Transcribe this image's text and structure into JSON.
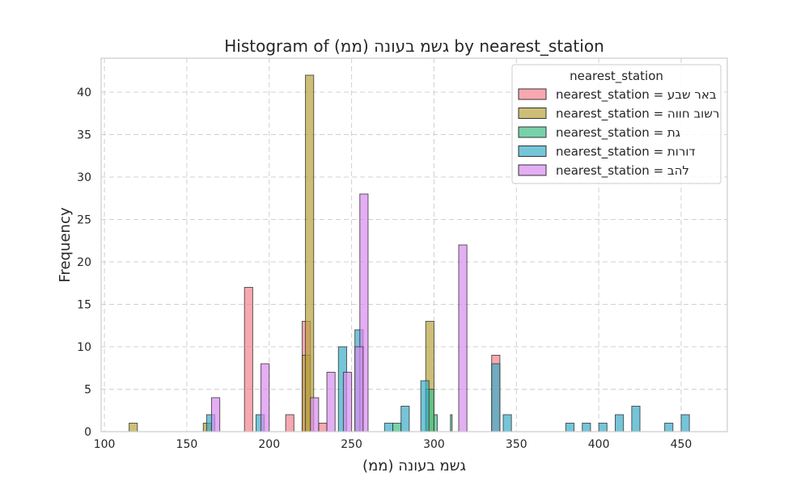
{
  "chart_data": {
    "type": "bar",
    "title": "Histogram of גשמ בעונה (ממ) by nearest_station",
    "xlabel": "גשמ בעונה (ממ)",
    "ylabel": "Frequency",
    "xlim": [
      98,
      478
    ],
    "ylim": [
      0,
      44
    ],
    "xticks": [
      100,
      150,
      200,
      250,
      300,
      350,
      400,
      450
    ],
    "yticks": [
      0,
      5,
      10,
      15,
      20,
      25,
      30,
      35,
      40
    ],
    "grid": true,
    "legend": {
      "title": "nearest_station",
      "placement": "top-right"
    },
    "series": [
      {
        "name": "nearest_station = באר שבע",
        "color": "#f4838e",
        "bins": [
          [
            185,
            190,
            17
          ],
          [
            210,
            215,
            2
          ],
          [
            220,
            225,
            13
          ],
          [
            230,
            235,
            1
          ],
          [
            335,
            340,
            9
          ]
        ]
      },
      {
        "name": "nearest_station = רשוב חווה",
        "color": "#b8a23d",
        "bins": [
          [
            115,
            120,
            1
          ],
          [
            160,
            165,
            1
          ],
          [
            220,
            225,
            9
          ],
          [
            222,
            227,
            42
          ],
          [
            295,
            300,
            13
          ]
        ]
      },
      {
        "name": "nearest_station = גת",
        "color": "#3dbf86",
        "bins": [
          [
            275,
            280,
            1
          ],
          [
            295,
            300,
            5
          ],
          [
            300,
            302,
            2
          ],
          [
            310,
            311,
            2
          ]
        ]
      },
      {
        "name": "nearest_station = דורות",
        "color": "#3badc8",
        "bins": [
          [
            162,
            167,
            2
          ],
          [
            192,
            197,
            2
          ],
          [
            270,
            275,
            1
          ],
          [
            280,
            285,
            3
          ],
          [
            292,
            297,
            6
          ],
          [
            335,
            340,
            8
          ],
          [
            342,
            347,
            2
          ],
          [
            380,
            385,
            1
          ],
          [
            390,
            395,
            1
          ],
          [
            400,
            405,
            1
          ],
          [
            410,
            415,
            2
          ],
          [
            420,
            425,
            3
          ],
          [
            440,
            445,
            1
          ],
          [
            450,
            455,
            2
          ],
          [
            242,
            247,
            10
          ],
          [
            252,
            257,
            12
          ]
        ]
      },
      {
        "name": "nearest_station = להב",
        "color": "#d98cf0",
        "bins": [
          [
            165,
            170,
            4
          ],
          [
            195,
            200,
            8
          ],
          [
            225,
            230,
            4
          ],
          [
            235,
            240,
            7
          ],
          [
            245,
            250,
            7
          ],
          [
            255,
            260,
            28
          ],
          [
            315,
            320,
            22
          ],
          [
            252,
            257,
            10
          ]
        ]
      }
    ]
  }
}
